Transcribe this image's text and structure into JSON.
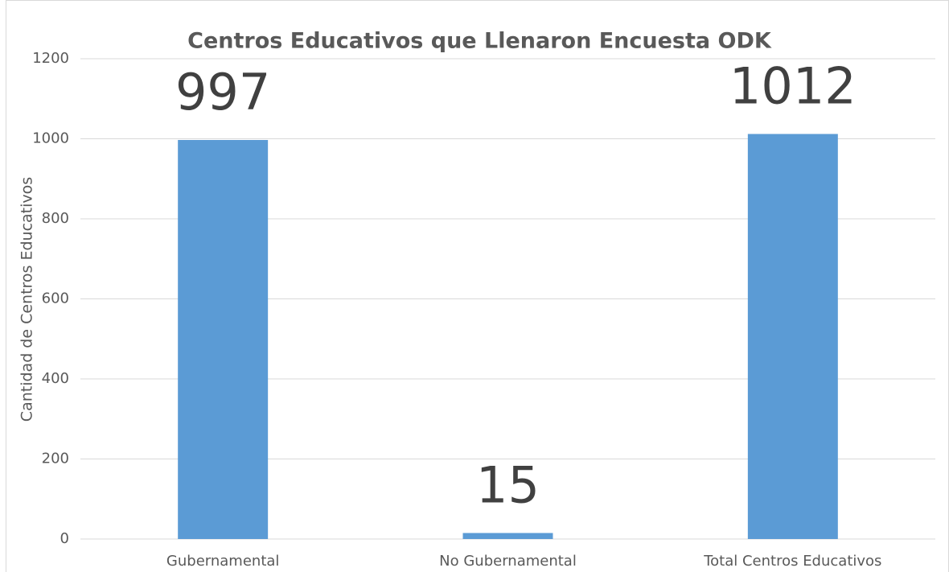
{
  "chart_data": {
    "type": "bar",
    "title": "Centros Educativos que Llenaron Encuesta ODK",
    "y_label": "Cantidad de Centros Educativos",
    "categories": [
      "Gubernamental",
      "No Gubernamental",
      "Total Centros Educativos"
    ],
    "values": [
      997,
      15,
      1012
    ],
    "color": "#5b9bd5",
    "ylim": [
      0,
      1200
    ],
    "yticks": [
      0,
      200,
      400,
      600,
      800,
      1000,
      1200
    ],
    "grid": true
  }
}
